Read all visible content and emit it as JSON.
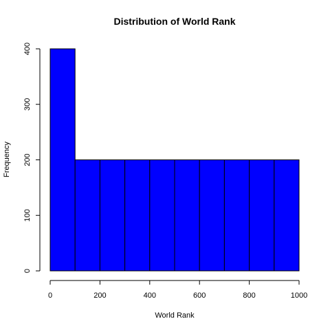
{
  "chart_data": {
    "type": "bar",
    "subtype": "histogram",
    "title": "Distribution of World Rank",
    "xlabel": "World Rank",
    "ylabel": "Frequency",
    "bins": [
      {
        "start": 0,
        "end": 100,
        "value": 400
      },
      {
        "start": 100,
        "end": 200,
        "value": 200
      },
      {
        "start": 200,
        "end": 300,
        "value": 200
      },
      {
        "start": 300,
        "end": 400,
        "value": 200
      },
      {
        "start": 400,
        "end": 500,
        "value": 200
      },
      {
        "start": 500,
        "end": 600,
        "value": 200
      },
      {
        "start": 600,
        "end": 700,
        "value": 200
      },
      {
        "start": 700,
        "end": 800,
        "value": 200
      },
      {
        "start": 800,
        "end": 900,
        "value": 200
      },
      {
        "start": 900,
        "end": 1000,
        "value": 200
      }
    ],
    "xlim": [
      0,
      1000
    ],
    "ylim": [
      0,
      400
    ],
    "x_ticks": [
      "0",
      "200",
      "400",
      "600",
      "800",
      "1000"
    ],
    "y_ticks": [
      "0",
      "100",
      "200",
      "300",
      "400"
    ],
    "bar_color": "#0000ff",
    "bar_border_color": "#000000",
    "grid": false,
    "legend": "none"
  }
}
